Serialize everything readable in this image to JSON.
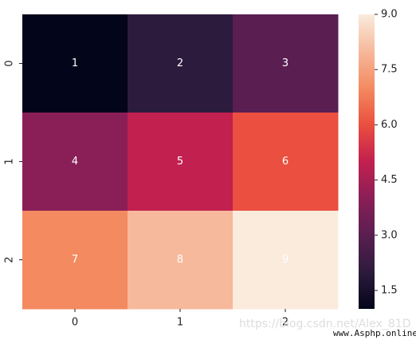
{
  "chart_data": {
    "type": "heatmap",
    "x_categories": [
      0,
      1,
      2
    ],
    "y_categories": [
      0,
      1,
      2
    ],
    "values": [
      [
        1,
        2,
        3
      ],
      [
        4,
        5,
        6
      ],
      [
        7,
        8,
        9
      ]
    ],
    "colormap": [
      "#03051a",
      "#2d1b3d",
      "#5a1e51",
      "#8a1f57",
      "#c2204f",
      "#ea4f3f",
      "#f48a60",
      "#f6b99b",
      "#faebdd"
    ],
    "clim": [
      1,
      9
    ],
    "cticks": [
      1.5,
      {
        "value": 3,
        "label": "3.0"
      },
      4.5,
      {
        "value": 6,
        "label": "6.0"
      },
      7.5,
      {
        "value": 9,
        "label": "9.0"
      }
    ],
    "watermarks": [
      "https://blog.csdn.net/Alex_81D",
      "www.Asphp.online"
    ]
  }
}
